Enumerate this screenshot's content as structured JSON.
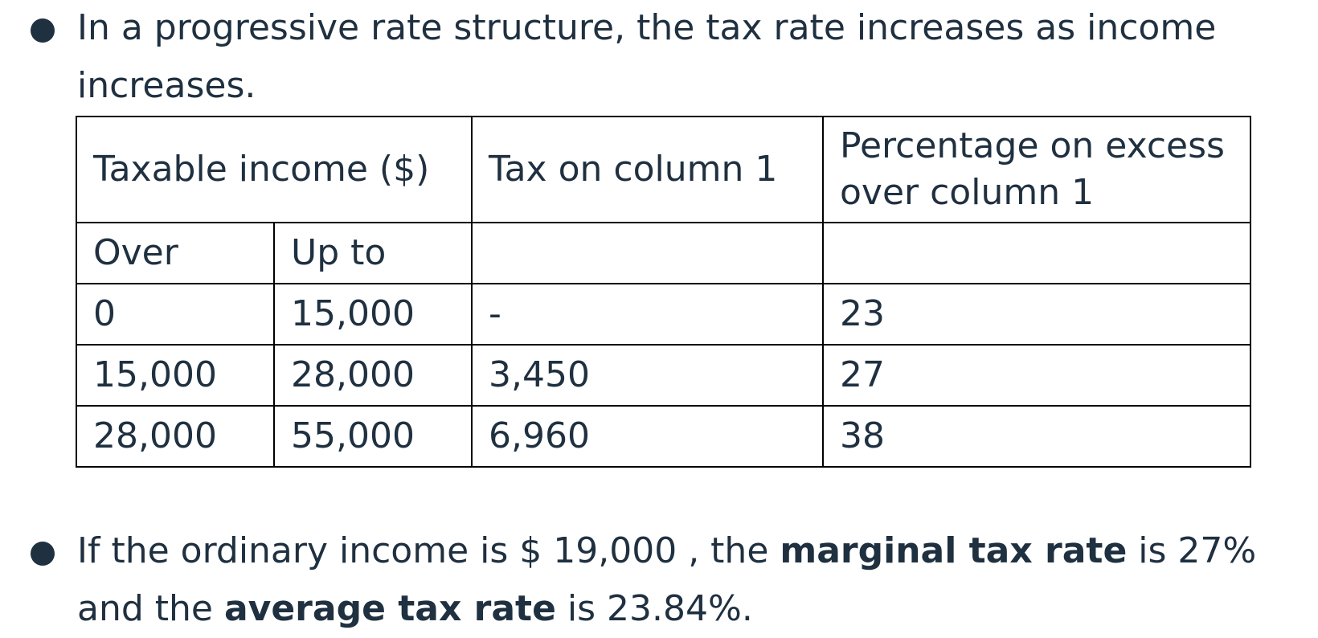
{
  "bullets": {
    "first_text": "In a progressive rate structure, the tax rate increases as income increases.",
    "second": {
      "text_1": "If the ordinary income is $ 19,000 , the ",
      "bold_1": "marginal tax rate",
      "text_2": " is 27% and the ",
      "bold_2": "average tax rate",
      "text_3": " is 23.84%."
    }
  },
  "table": {
    "headers": {
      "taxable_income": "Taxable income ($)",
      "tax_on_col1": "Tax on column 1",
      "pct_excess": "Percentage on excess over column 1"
    },
    "subheaders": {
      "over": "Over",
      "up_to": "Up to"
    },
    "rows": [
      {
        "over": "0",
        "up_to": "15,000",
        "tax": "-",
        "pct": "23"
      },
      {
        "over": "15,000",
        "up_to": "28,000",
        "tax": "3,450",
        "pct": "27"
      },
      {
        "over": "28,000",
        "up_to": "55,000",
        "tax": "6,960",
        "pct": "38"
      }
    ]
  }
}
